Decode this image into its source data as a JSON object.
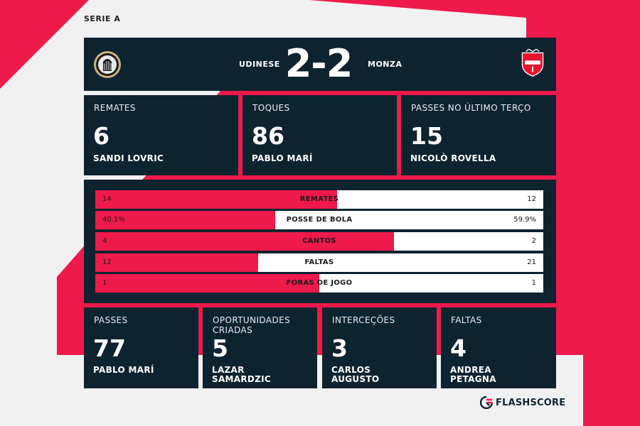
{
  "league": "SERIE A",
  "match": {
    "home_team": "UDINESE",
    "away_team": "MONZA",
    "score": "2-2",
    "home_crest_icon": "udinese-zebra-crest-icon",
    "away_crest_icon": "monza-shield-crest-icon"
  },
  "top_stats": [
    {
      "label": "REMATES",
      "value": "6",
      "player": "SANDI LOVRIC"
    },
    {
      "label": "TOQUES",
      "value": "86",
      "player": "PABLO MARÍ"
    },
    {
      "label": "PASSES NO ÚLTIMO TERÇO",
      "value": "15",
      "player": "NICOLÒ ROVELLA"
    }
  ],
  "comparison": [
    {
      "label": "REMATES",
      "home": "14",
      "away": "12",
      "home_share": 0.54
    },
    {
      "label": "POSSE DE BOLA",
      "home": "40.1%",
      "away": "59.9%",
      "home_share": 0.401
    },
    {
      "label": "CANTOS",
      "home": "4",
      "away": "2",
      "home_share": 0.667
    },
    {
      "label": "FALTAS",
      "home": "12",
      "away": "21",
      "home_share": 0.364
    },
    {
      "label": "FORAS DE JOGO",
      "home": "1",
      "away": "1",
      "home_share": 0.5
    }
  ],
  "bottom_stats": [
    {
      "label_line1": "PASSES",
      "label_line2": "",
      "value": "77",
      "player_line1": "PABLO MARÍ",
      "player_line2": ""
    },
    {
      "label_line1": "OPORTUNIDADES",
      "label_line2": "CRIADAS",
      "value": "5",
      "player_line1": "LAZAR",
      "player_line2": "SAMARDZIC"
    },
    {
      "label_line1": "INTERCEÇÕES",
      "label_line2": "",
      "value": "3",
      "player_line1": "CARLOS",
      "player_line2": "AUGUSTO"
    },
    {
      "label_line1": "FALTAS",
      "label_line2": "",
      "value": "4",
      "player_line1": "ANDREA",
      "player_line2": "PETAGNA"
    }
  ],
  "brand": {
    "name": "FLASHSCORE",
    "icon": "flashscore-logo-icon"
  },
  "colors": {
    "accent": "#f0194b",
    "panel": "#0e2330",
    "background": "#f1f1f1"
  }
}
